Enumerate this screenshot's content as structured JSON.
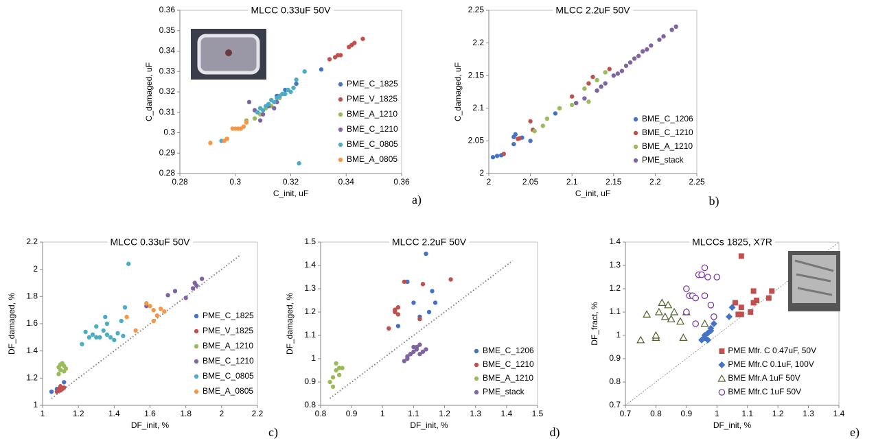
{
  "chart_data": [
    {
      "type": "scatter",
      "title": "MLCC 0.33uF 50V",
      "x_label": "C_init, uF",
      "y_label": "C_damaged, uF",
      "panel_label": "a)",
      "xlim": [
        0.28,
        0.36
      ],
      "xticks": [
        0.28,
        0.3,
        0.32,
        0.34,
        0.36
      ],
      "ylim": [
        0.28,
        0.36
      ],
      "yticks": [
        0.28,
        0.29,
        0.3,
        0.31,
        0.32,
        0.33,
        0.34,
        0.35,
        0.36
      ],
      "legend": "lower right",
      "series": [
        {
          "name": "PME_C_1825",
          "color": "#4472c4",
          "x": [
            0.322,
            0.331,
            0.318,
            0.315,
            0.312
          ],
          "values": [
            0.324,
            0.331,
            0.321,
            0.318,
            0.314
          ]
        },
        {
          "name": "PME_V_1825",
          "color": "#c0504d",
          "x": [
            0.334,
            0.336,
            0.337,
            0.338,
            0.341,
            0.342,
            0.343,
            0.346,
            0.316
          ],
          "values": [
            0.336,
            0.337,
            0.338,
            0.338,
            0.342,
            0.343,
            0.344,
            0.346,
            0.318
          ]
        },
        {
          "name": "BME_A_1210",
          "color": "#9bbb59",
          "x": [
            0.304,
            0.307,
            0.309,
            0.311,
            0.313,
            0.316
          ],
          "values": [
            0.306,
            0.307,
            0.309,
            0.312,
            0.313,
            0.317
          ]
        },
        {
          "name": "BME_C_1210",
          "color": "#8064a2",
          "x": [
            0.305,
            0.307,
            0.309,
            0.31,
            0.312,
            0.314,
            0.315,
            0.317,
            0.319
          ],
          "values": [
            0.315,
            0.311,
            0.306,
            0.309,
            0.313,
            0.312,
            0.315,
            0.319,
            0.321
          ]
        },
        {
          "name": "BME_C_0805",
          "color": "#4bacc6",
          "x": [
            0.295,
            0.308,
            0.309,
            0.31,
            0.311,
            0.312,
            0.313,
            0.314,
            0.315,
            0.316,
            0.317,
            0.318,
            0.319,
            0.32,
            0.321,
            0.322,
            0.325,
            0.323
          ],
          "values": [
            0.296,
            0.31,
            0.312,
            0.311,
            0.313,
            0.314,
            0.316,
            0.315,
            0.317,
            0.318,
            0.319,
            0.319,
            0.321,
            0.32,
            0.322,
            0.326,
            0.33,
            0.285
          ]
        },
        {
          "name": "BME_A_0805",
          "color": "#f79646",
          "x": [
            0.291,
            0.296,
            0.297,
            0.299,
            0.3,
            0.301,
            0.302,
            0.303,
            0.304
          ],
          "values": [
            0.295,
            0.296,
            0.297,
            0.302,
            0.302,
            0.302,
            0.302,
            0.303,
            0.305
          ]
        }
      ]
    },
    {
      "type": "scatter",
      "title": "MLCC 2.2uF 50V",
      "x_label": "C_init, uF",
      "y_label": "C_damaged, uF",
      "panel_label": "b)",
      "xlim": [
        2,
        2.25
      ],
      "xticks": [
        2,
        2.05,
        2.1,
        2.15,
        2.2,
        2.25
      ],
      "ylim": [
        2,
        2.25
      ],
      "yticks": [
        2,
        2.05,
        2.1,
        2.15,
        2.2,
        2.25
      ],
      "legend": "lower right",
      "series": [
        {
          "name": "BME_C_1206",
          "color": "#4472c4",
          "x": [
            2.005,
            2.01,
            2.015,
            2.03,
            2.032,
            2.04,
            2.05,
            2.08,
            2.03
          ],
          "values": [
            2.025,
            2.027,
            2.028,
            2.056,
            2.06,
            2.055,
            2.05,
            2.092,
            2.045
          ]
        },
        {
          "name": "BME_C_1210",
          "color": "#c0504d",
          "x": [
            2.018,
            2.035,
            2.037,
            2.05,
            2.053,
            2.1,
            2.125,
            2.12,
            2.145
          ],
          "values": [
            2.03,
            2.053,
            2.054,
            2.08,
            2.067,
            2.118,
            2.148,
            2.138,
            2.16
          ]
        },
        {
          "name": "BME_A_1210",
          "color": "#9bbb59",
          "x": [
            2.055,
            2.065,
            2.07,
            2.085,
            2.1,
            2.115,
            2.13,
            2.14,
            2.12
          ],
          "values": [
            2.065,
            2.073,
            2.084,
            2.1,
            2.105,
            2.13,
            2.143,
            2.155,
            2.11
          ]
        },
        {
          "name": "PME_stack",
          "color": "#8064a2",
          "x": [
            2.105,
            2.115,
            2.13,
            2.135,
            2.14,
            2.15,
            2.155,
            2.16,
            2.165,
            2.17,
            2.175,
            2.18,
            2.185,
            2.19,
            2.195,
            2.205,
            2.21,
            2.22,
            2.225
          ],
          "values": [
            2.108,
            2.115,
            2.127,
            2.133,
            2.138,
            2.15,
            2.153,
            2.157,
            2.165,
            2.17,
            2.176,
            2.18,
            2.187,
            2.19,
            2.196,
            2.205,
            2.21,
            2.22,
            2.225
          ]
        }
      ]
    },
    {
      "type": "scatter",
      "title": "MLCC 0.33uF 50V",
      "x_label": "DF_init, %",
      "y_label": "DF_damaged, %",
      "panel_label": "c)",
      "xlim": [
        1,
        2.2
      ],
      "xticks": [
        1,
        1.2,
        1.4,
        1.6,
        1.8,
        2,
        2.2
      ],
      "ylim": [
        1,
        2.2
      ],
      "yticks": [
        1,
        1.2,
        1.4,
        1.6,
        1.8,
        2,
        2.2
      ],
      "legend": "lower right",
      "reference_line": [
        1.05,
        2.1
      ],
      "series": [
        {
          "name": "PME_C_1825",
          "color": "#4472c4",
          "x": [
            1.05,
            1.08,
            1.12,
            1.1
          ],
          "values": [
            1.1,
            1.12,
            1.17,
            1.13
          ]
        },
        {
          "name": "PME_V_1825",
          "color": "#c0504d",
          "x": [
            1.08,
            1.09,
            1.1,
            1.1,
            1.11,
            1.12
          ],
          "values": [
            1.1,
            1.12,
            1.11,
            1.14,
            1.12,
            1.13
          ]
        },
        {
          "name": "BME_A_1210",
          "color": "#9bbb59",
          "x": [
            1.09,
            1.1,
            1.1,
            1.11,
            1.12,
            1.12,
            1.09,
            1.13
          ],
          "values": [
            1.28,
            1.3,
            1.26,
            1.31,
            1.29,
            1.25,
            1.23,
            1.27
          ]
        },
        {
          "name": "BME_C_1210",
          "color": "#8064a2",
          "x": [
            1.58,
            1.7,
            1.74,
            1.8,
            1.84,
            1.85,
            1.86,
            1.89
          ],
          "values": [
            1.73,
            1.81,
            1.84,
            1.79,
            1.86,
            1.9,
            1.88,
            1.93
          ]
        },
        {
          "name": "BME_C_0805",
          "color": "#4bacc6",
          "x": [
            1.22,
            1.24,
            1.26,
            1.28,
            1.3,
            1.32,
            1.34,
            1.35,
            1.36,
            1.38,
            1.4,
            1.42,
            1.44,
            1.46,
            1.48,
            1.36,
            1.3,
            1.45
          ],
          "values": [
            1.45,
            1.54,
            1.5,
            1.52,
            1.58,
            1.5,
            1.55,
            1.65,
            1.52,
            1.5,
            1.48,
            1.53,
            1.62,
            1.72,
            2.04,
            1.6,
            1.5,
            1.51
          ]
        },
        {
          "name": "BME_A_0805",
          "color": "#f79646",
          "x": [
            1.47,
            1.52,
            1.58,
            1.6,
            1.62,
            1.64,
            1.66,
            1.68,
            1.62
          ],
          "values": [
            1.65,
            1.55,
            1.75,
            1.73,
            1.7,
            1.66,
            1.71,
            1.69,
            1.62
          ]
        }
      ]
    },
    {
      "type": "scatter",
      "title": "MLCC 2.2uF 50V",
      "x_label": "DF_init, %",
      "y_label": "DF_damaged, %",
      "panel_label": "d)",
      "xlim": [
        0.8,
        1.5
      ],
      "xticks": [
        0.8,
        0.9,
        1,
        1.1,
        1.2,
        1.3,
        1.4,
        1.5
      ],
      "ylim": [
        0.8,
        1.5
      ],
      "yticks": [
        0.8,
        0.9,
        1,
        1.1,
        1.2,
        1.3,
        1.4,
        1.5
      ],
      "legend": "lower right",
      "reference_line": [
        0.83,
        1.42
      ],
      "series": [
        {
          "name": "BME_C_1206",
          "color": "#4472c4",
          "x": [
            1.05,
            1.08,
            1.1,
            1.12,
            1.14,
            1.15,
            1.16,
            1.17
          ],
          "values": [
            1.14,
            1.33,
            1.24,
            1.18,
            1.45,
            1.2,
            1.29,
            1.24
          ]
        },
        {
          "name": "BME_C_1210",
          "color": "#c0504d",
          "x": [
            1.02,
            1.04,
            1.05,
            1.05,
            1.07,
            1.12,
            1.13,
            1.22,
            1.04
          ],
          "values": [
            1.13,
            1.2,
            1.22,
            1.19,
            1.33,
            1.17,
            1.32,
            1.34,
            1.21
          ]
        },
        {
          "name": "BME_A_1210",
          "color": "#9bbb59",
          "x": [
            0.83,
            0.84,
            0.84,
            0.85,
            0.85,
            0.86,
            0.87,
            0.86
          ],
          "values": [
            0.9,
            0.92,
            0.88,
            0.95,
            0.98,
            0.96,
            0.96,
            0.93
          ]
        },
        {
          "name": "PME_stack",
          "color": "#8064a2",
          "x": [
            1.07,
            1.08,
            1.09,
            1.1,
            1.1,
            1.11,
            1.12,
            1.13,
            1.14,
            1.09,
            1.11,
            1.08,
            1.12
          ],
          "values": [
            0.99,
            1.0,
            1.02,
            1.03,
            1.05,
            1.04,
            1.06,
            1.03,
            1.04,
            1.02,
            1.05,
            1.01,
            1.02
          ]
        }
      ]
    },
    {
      "type": "scatter",
      "title": "MLCCs 1825, X7R",
      "x_label": "DF_init, %",
      "y_label": "DF_fract, %",
      "panel_label": "e)",
      "xlim": [
        0.7,
        1.4
      ],
      "xticks": [
        0.7,
        0.8,
        0.9,
        1,
        1.1,
        1.2,
        1.3,
        1.4
      ],
      "ylim": [
        0.7,
        1.4
      ],
      "yticks": [
        0.7,
        0.8,
        0.9,
        1,
        1.1,
        1.2,
        1.3,
        1.4
      ],
      "legend": "lower right",
      "reference_line": [
        0.7,
        1.4
      ],
      "series": [
        {
          "name": "PME Mfr. C 0.47uF, 50V",
          "color": "#c0504d",
          "marker": "square",
          "filled": true,
          "x": [
            1.06,
            1.07,
            1.08,
            1.08,
            1.11,
            1.12,
            1.12,
            1.13,
            1.17,
            1.18,
            1.08
          ],
          "values": [
            1.14,
            1.09,
            1.12,
            1.09,
            1.1,
            1.19,
            1.14,
            1.15,
            1.16,
            1.19,
            1.34
          ]
        },
        {
          "name": "PME Mfr.C 0.1uF, 100V",
          "color": "#4472c4",
          "marker": "diamond",
          "filled": true,
          "x": [
            0.95,
            0.96,
            0.97,
            0.97,
            0.98,
            0.99,
            1.04,
            1.05,
            0.96,
            0.98
          ],
          "values": [
            0.98,
            1.0,
            0.98,
            1.01,
            1.03,
            1.05,
            1.08,
            1.12,
            0.99,
            1.02
          ]
        },
        {
          "name": "BME Mfr.A 1uF 50V",
          "color": "#4f6228",
          "marker": "triangle",
          "filled": false,
          "x": [
            0.75,
            0.77,
            0.8,
            0.81,
            0.82,
            0.83,
            0.84,
            0.85,
            0.86,
            0.88,
            0.89,
            0.9,
            0.8,
            0.96
          ],
          "values": [
            0.98,
            1.09,
            0.99,
            1.1,
            1.14,
            1.08,
            1.13,
            1.07,
            1.1,
            1.06,
            0.99,
            1.1,
            1.0,
            1.05
          ]
        },
        {
          "name": "BME Mfr.C 1uF 50V",
          "color": "#7030a0",
          "marker": "circle",
          "filled": false,
          "x": [
            0.9,
            0.9,
            0.91,
            0.92,
            0.93,
            0.94,
            0.95,
            0.96,
            0.97,
            0.98,
            0.99,
            1.0,
            0.93,
            0.96
          ],
          "values": [
            1.2,
            1.1,
            1.17,
            1.17,
            1.16,
            1.26,
            1.26,
            1.29,
            1.25,
            1.13,
            1.08,
            1.25,
            1.05,
            1.17
          ]
        }
      ]
    }
  ]
}
